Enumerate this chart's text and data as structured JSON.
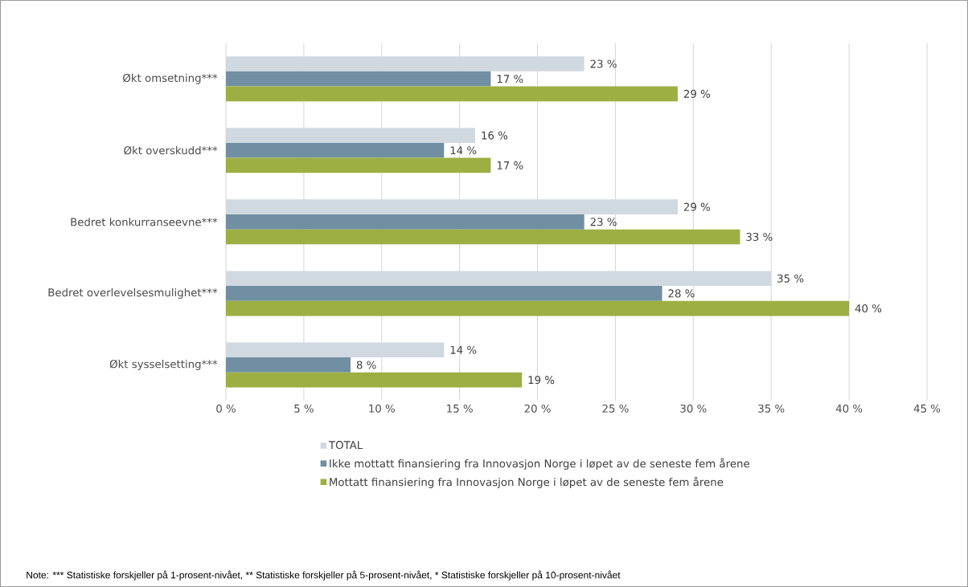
{
  "chart_data": {
    "type": "bar",
    "orientation": "horizontal",
    "categories": [
      "Økt omsetning***",
      "Økt overskudd***",
      "Bedret konkurranseevne***",
      "Bedret overlevelsesmulighet***",
      "Økt sysselsetting***"
    ],
    "series": [
      {
        "name": "TOTAL",
        "color": "#d0d8e0",
        "values": [
          23,
          16,
          29,
          35,
          14
        ],
        "value_labels": [
          "23 %",
          "16 %",
          "29 %",
          "35 %",
          "14 %"
        ]
      },
      {
        "name": "Ikke mottatt finansiering fra Innovasjon Norge i løpet av de seneste fem årene",
        "color": "#718fa2",
        "values": [
          17,
          14,
          23,
          28,
          8
        ],
        "value_labels": [
          "17 %",
          "14 %",
          "23 %",
          "28 %",
          "8 %"
        ]
      },
      {
        "name": "Mottatt finansiering fra Innovasjon Norge i løpet av de seneste fem årene",
        "color": "#9daf42",
        "values": [
          29,
          17,
          33,
          40,
          19
        ],
        "value_labels": [
          "29 %",
          "17 %",
          "33 %",
          "40 %",
          "19 %"
        ]
      }
    ],
    "xlim": [
      0,
      45
    ],
    "xticks": [
      {
        "value": 0,
        "label": "0 %"
      },
      {
        "value": 5,
        "label": "5 %"
      },
      {
        "value": 10,
        "label": "10 %"
      },
      {
        "value": 15,
        "label": "15 %"
      },
      {
        "value": 20,
        "label": "20 %"
      },
      {
        "value": 25,
        "label": "25 %"
      },
      {
        "value": 30,
        "label": "30 %"
      },
      {
        "value": 35,
        "label": "35 %"
      },
      {
        "value": 40,
        "label": "40 %"
      },
      {
        "value": 45,
        "label": "45 %"
      }
    ],
    "grid": "x",
    "legend": "bottom",
    "annotations": [
      "Note: *** Statistiske forskjeller på 1-prosent-nivået, ** Statistiske forskjeller på 5-prosent-nivået, * Statistiske forskjeller på 10-prosent-nivået"
    ]
  }
}
